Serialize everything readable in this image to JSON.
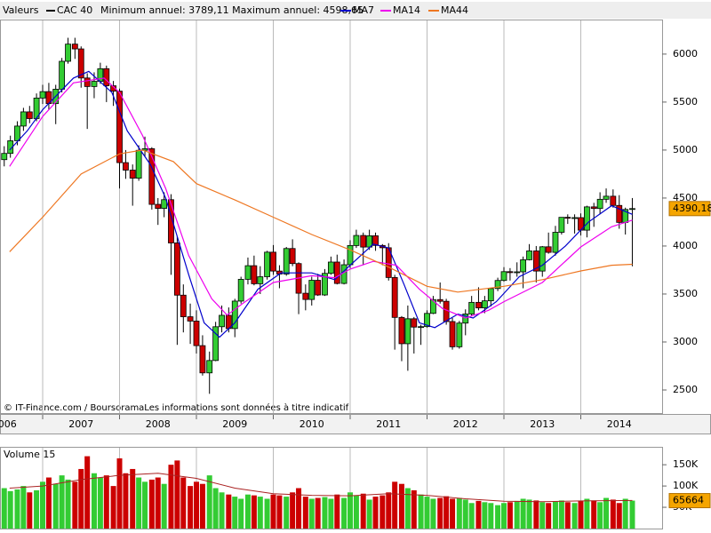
{
  "chart_data": [
    {
      "type": "candlestick",
      "label": "Valeurs",
      "title": "CAC 40",
      "subtitle": "Minimum annuel: 3789,11 Maximum annuel: 4598,65",
      "source": "© IT-Finance.com / BoursoramaLes informations sont données à titre indicatif",
      "last_close_label": "4390,18",
      "up_color": "#33cc33",
      "down_color": "#cc0000",
      "line_color": "#000000",
      "grid": "x",
      "xlim": [
        2006.445,
        2015
      ],
      "ylim": [
        2250,
        6360
      ],
      "xticks": [
        2006,
        2007,
        2008,
        2009,
        2010,
        2011,
        2012,
        2013,
        2014
      ],
      "yticks": [
        2500,
        3000,
        3500,
        4000,
        4500,
        5000,
        5500,
        6000
      ],
      "x": [
        2006.5,
        2006.58,
        2006.67,
        2006.75,
        2006.83,
        2006.92,
        2007,
        2007.08,
        2007.17,
        2007.25,
        2007.33,
        2007.42,
        2007.5,
        2007.58,
        2007.67,
        2007.75,
        2007.83,
        2007.92,
        2008,
        2008.08,
        2008.17,
        2008.25,
        2008.33,
        2008.42,
        2008.5,
        2008.58,
        2008.67,
        2008.75,
        2008.83,
        2008.92,
        2009,
        2009.08,
        2009.17,
        2009.25,
        2009.33,
        2009.42,
        2009.5,
        2009.58,
        2009.67,
        2009.75,
        2009.83,
        2009.92,
        2010,
        2010.08,
        2010.17,
        2010.25,
        2010.33,
        2010.42,
        2010.5,
        2010.58,
        2010.67,
        2010.75,
        2010.83,
        2010.92,
        2011,
        2011.08,
        2011.17,
        2011.25,
        2011.33,
        2011.42,
        2011.5,
        2011.58,
        2011.67,
        2011.75,
        2011.83,
        2011.92,
        2012,
        2012.08,
        2012.17,
        2012.25,
        2012.33,
        2012.42,
        2012.5,
        2012.58,
        2012.67,
        2012.75,
        2012.83,
        2012.92,
        2013,
        2013.08,
        2013.17,
        2013.25,
        2013.33,
        2013.42,
        2013.5,
        2013.58,
        2013.67,
        2013.75,
        2013.83,
        2013.92,
        2014,
        2014.08,
        2014.17,
        2014.25,
        2014.33,
        2014.42,
        2014.5,
        2014.58,
        2014.67
      ],
      "open": [
        4900,
        4965,
        5097,
        5250,
        5398,
        5328,
        5542,
        5609,
        5484,
        5634,
        5925,
        6104,
        6054,
        5751,
        5662,
        5716,
        5848,
        5670,
        5614,
        4869,
        4791,
        4707,
        4997,
        5014,
        4434,
        4392,
        4483,
        4032,
        3488,
        3263,
        3218,
        2962,
        2678,
        2807,
        3159,
        3278,
        3140,
        3426,
        3653,
        3795,
        3607,
        3680,
        3936,
        3739,
        3708,
        3974,
        3817,
        3508,
        3443,
        3643,
        3490,
        3715,
        3833,
        3610,
        3805,
        4005,
        4110,
        3989,
        4107,
        4006,
        3982,
        3672,
        3256,
        2982,
        3242,
        3155,
        3160,
        3298,
        3442,
        3424,
        3213,
        2950,
        3197,
        3292,
        3413,
        3355,
        3429,
        3557,
        3641,
        3733,
        3723,
        3731,
        3857,
        3949,
        3739,
        3992,
        3934,
        4143,
        4299,
        4295,
        4296,
        4165,
        4408,
        4391,
        4487,
        4519,
        4423,
        4246,
        4381
      ],
      "high": [
        5040,
        5150,
        5300,
        5440,
        5460,
        5590,
        5680,
        5700,
        5680,
        5960,
        6170,
        6170,
        6080,
        5800,
        5810,
        5910,
        5880,
        5720,
        5640,
        5000,
        4850,
        5050,
        5140,
        5030,
        4500,
        4560,
        4540,
        4100,
        3600,
        3400,
        3330,
        3070,
        2900,
        3210,
        3380,
        3360,
        3450,
        3680,
        3880,
        3900,
        3790,
        3950,
        4010,
        3800,
        3990,
        4070,
        3830,
        3600,
        3680,
        3710,
        3760,
        3890,
        3910,
        3860,
        4060,
        4170,
        4140,
        4170,
        4140,
        4020,
        4030,
        3700,
        3270,
        3380,
        3260,
        3180,
        3330,
        3480,
        3620,
        3450,
        3250,
        3220,
        3340,
        3480,
        3570,
        3480,
        3560,
        3670,
        3780,
        3770,
        3830,
        3890,
        4020,
        4000,
        4000,
        4140,
        4210,
        4300,
        4330,
        4330,
        4340,
        4420,
        4450,
        4560,
        4600,
        4590,
        4530,
        4400,
        4500
      ],
      "low": [
        4830,
        4920,
        5050,
        5200,
        5280,
        5300,
        5480,
        5420,
        5270,
        5600,
        5900,
        5950,
        5650,
        5220,
        5540,
        5690,
        5500,
        5460,
        4600,
        4700,
        4420,
        4680,
        4930,
        4380,
        4220,
        4300,
        3700,
        2970,
        3100,
        2980,
        2880,
        2650,
        2460,
        2800,
        3100,
        3100,
        3050,
        3400,
        3600,
        3590,
        3500,
        3650,
        3700,
        3560,
        3690,
        3790,
        3290,
        3330,
        3380,
        3480,
        3480,
        3700,
        3600,
        3600,
        3770,
        3980,
        3800,
        3960,
        3950,
        3800,
        3640,
        2920,
        2800,
        2700,
        2880,
        2970,
        3150,
        3290,
        3400,
        3180,
        2920,
        2930,
        3070,
        3270,
        3330,
        3300,
        3370,
        3530,
        3630,
        3640,
        3680,
        3560,
        3850,
        3620,
        3680,
        3920,
        3900,
        4120,
        4230,
        4130,
        4110,
        4090,
        4200,
        4330,
        4450,
        4400,
        4180,
        4120,
        3789.11
      ],
      "close": [
        4965,
        5097,
        5250,
        5398,
        5328,
        5542,
        5609,
        5484,
        5634,
        5925,
        6104,
        6054,
        5751,
        5662,
        5716,
        5848,
        5670,
        5614,
        4869,
        4791,
        4707,
        4997,
        5014,
        4434,
        4392,
        4483,
        4032,
        3488,
        3263,
        3218,
        2962,
        2678,
        2807,
        3159,
        3278,
        3140,
        3426,
        3653,
        3795,
        3607,
        3680,
        3936,
        3739,
        3708,
        3974,
        3817,
        3508,
        3443,
        3643,
        3490,
        3715,
        3833,
        3610,
        3805,
        4005,
        4110,
        3989,
        4107,
        4006,
        3982,
        3672,
        3256,
        2982,
        3242,
        3155,
        3160,
        3298,
        3442,
        3424,
        3213,
        2950,
        3197,
        3292,
        3413,
        3355,
        3429,
        3557,
        3641,
        3733,
        3723,
        3731,
        3857,
        3949,
        3739,
        3992,
        3934,
        4143,
        4299,
        4295,
        4296,
        4165,
        4408,
        4391,
        4487,
        4519,
        4423,
        4246,
        4381,
        4390.18
      ],
      "series": [
        {
          "name": "MA7",
          "color": "#0000cc",
          "x": [
            2006.57,
            2006.8,
            2007,
            2007.4,
            2007.6,
            2007.9,
            2008.1,
            2008.4,
            2008.6,
            2008.9,
            2009.1,
            2009.3,
            2009.5,
            2009.8,
            2010.1,
            2010.5,
            2010.8,
            2011,
            2011.3,
            2011.5,
            2011.7,
            2011.9,
            2012.1,
            2012.4,
            2012.6,
            2012.9,
            2013.2,
            2013.5,
            2013.8,
            2014.1,
            2014.4,
            2014.67
          ],
          "values": [
            5000,
            5200,
            5420,
            5750,
            5820,
            5600,
            5200,
            4850,
            4500,
            3700,
            3200,
            3050,
            3200,
            3550,
            3720,
            3720,
            3650,
            3800,
            4020,
            3980,
            3600,
            3200,
            3150,
            3290,
            3250,
            3420,
            3680,
            3800,
            4000,
            4250,
            4420,
            4330
          ]
        },
        {
          "name": "MA14",
          "color": "#ee00ee",
          "x": [
            2006.57,
            2007,
            2007.4,
            2007.8,
            2008,
            2008.3,
            2008.6,
            2008.9,
            2009.2,
            2009.4,
            2009.6,
            2010,
            2010.5,
            2010.8,
            2011,
            2011.3,
            2011.6,
            2011.9,
            2012.2,
            2012.5,
            2012.8,
            2013,
            2013.5,
            2014,
            2014.4,
            2014.67
          ],
          "values": [
            4830,
            5350,
            5700,
            5750,
            5600,
            5150,
            4600,
            3900,
            3450,
            3280,
            3400,
            3620,
            3690,
            3670,
            3760,
            3840,
            3800,
            3550,
            3350,
            3250,
            3330,
            3420,
            3620,
            3990,
            4200,
            4270
          ]
        },
        {
          "name": "MA44",
          "color": "#ee7722",
          "x": [
            2006.57,
            2007,
            2007.5,
            2008,
            2008.3,
            2008.7,
            2009,
            2009.5,
            2010,
            2010.5,
            2011,
            2011.5,
            2012,
            2012.4,
            2013,
            2013.5,
            2014,
            2014.4,
            2014.67
          ],
          "values": [
            3940,
            4300,
            4750,
            4960,
            5000,
            4880,
            4650,
            4480,
            4300,
            4120,
            3960,
            3780,
            3580,
            3520,
            3580,
            3650,
            3740,
            3800,
            3810
          ]
        }
      ]
    },
    {
      "type": "bar",
      "title": "Volume 15",
      "xlim": [
        2006.445,
        2015
      ],
      "ylim": [
        0,
        190000
      ],
      "yticks": [
        {
          "value": 50000,
          "label": "50K"
        },
        {
          "value": 100000,
          "label": "100K"
        },
        {
          "value": 150000,
          "label": "150K"
        }
      ],
      "x": [
        2006.5,
        2006.58,
        2006.67,
        2006.75,
        2006.83,
        2006.92,
        2007,
        2007.08,
        2007.17,
        2007.25,
        2007.33,
        2007.42,
        2007.5,
        2007.58,
        2007.67,
        2007.75,
        2007.83,
        2007.92,
        2008,
        2008.08,
        2008.17,
        2008.25,
        2008.33,
        2008.42,
        2008.5,
        2008.58,
        2008.67,
        2008.75,
        2008.83,
        2008.92,
        2009,
        2009.08,
        2009.17,
        2009.25,
        2009.33,
        2009.42,
        2009.5,
        2009.58,
        2009.67,
        2009.75,
        2009.83,
        2009.92,
        2010,
        2010.08,
        2010.17,
        2010.25,
        2010.33,
        2010.42,
        2010.5,
        2010.58,
        2010.67,
        2010.75,
        2010.83,
        2010.92,
        2011,
        2011.08,
        2011.17,
        2011.25,
        2011.33,
        2011.42,
        2011.5,
        2011.58,
        2011.67,
        2011.75,
        2011.83,
        2011.92,
        2012,
        2012.08,
        2012.17,
        2012.25,
        2012.33,
        2012.42,
        2012.5,
        2012.58,
        2012.67,
        2012.75,
        2012.83,
        2012.92,
        2013,
        2013.08,
        2013.17,
        2013.25,
        2013.33,
        2013.42,
        2013.5,
        2013.58,
        2013.67,
        2013.75,
        2013.83,
        2013.92,
        2014,
        2014.08,
        2014.17,
        2014.25,
        2014.33,
        2014.42,
        2014.5,
        2014.58,
        2014.67
      ],
      "values": [
        95000,
        88000,
        92000,
        100000,
        85000,
        90000,
        110000,
        120000,
        105000,
        125000,
        115000,
        110000,
        140000,
        170000,
        130000,
        120000,
        125000,
        100000,
        165000,
        130000,
        140000,
        120000,
        110000,
        115000,
        120000,
        105000,
        150000,
        160000,
        120000,
        100000,
        110000,
        105000,
        125000,
        95000,
        85000,
        80000,
        75000,
        70000,
        80000,
        78000,
        75000,
        70000,
        80000,
        78000,
        75000,
        85000,
        95000,
        75000,
        70000,
        72000,
        74000,
        70000,
        80000,
        72000,
        85000,
        78000,
        82000,
        68000,
        75000,
        78000,
        85000,
        110000,
        105000,
        95000,
        90000,
        80000,
        75000,
        70000,
        72000,
        76000,
        70000,
        72000,
        68000,
        60000,
        65000,
        62000,
        60000,
        55000,
        60000,
        62000,
        65000,
        70000,
        68000,
        66000,
        62000,
        60000,
        64000,
        66000,
        62000,
        60000,
        65000,
        70000,
        66000,
        62000,
        72000,
        68000,
        60000,
        70000,
        65664
      ],
      "average": {
        "color": "#aa2222",
        "x": [
          2006.57,
          2007,
          2007.5,
          2008,
          2008.5,
          2009,
          2009.5,
          2010,
          2010.5,
          2011,
          2011.5,
          2012,
          2012.5,
          2013,
          2013.5,
          2014,
          2014.67
        ],
        "values": [
          95000,
          100000,
          115000,
          125000,
          130000,
          118000,
          95000,
          82000,
          78000,
          77000,
          82000,
          78000,
          70000,
          64000,
          63000,
          65000,
          66000
        ]
      }
    }
  ]
}
